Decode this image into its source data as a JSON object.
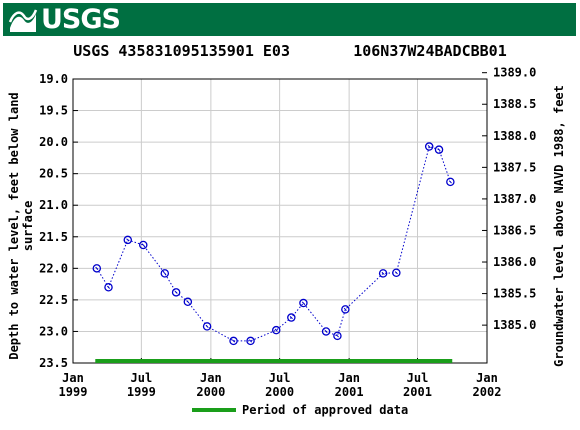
{
  "header": {
    "agency": "USGS"
  },
  "title": "USGS 435831095135901 E03       106N37W24BADCBB01",
  "colors": {
    "banner": "#006f41",
    "series": "#0000cc",
    "approved": "#1a9e1a"
  },
  "chart_data": {
    "type": "line",
    "title": "USGS 435831095135901 E03       106N37W24BADCBB01",
    "ylabel": "Depth to water level, feet below land surface",
    "ylabel_lines": [
      "Depth to water level, feet below land",
      "surface"
    ],
    "y2label": "Groundwater level above NAVD 1988, feet",
    "xlim": [
      "1999-01-01",
      "2002-01-01"
    ],
    "ylim": [
      23.5,
      19.0
    ],
    "y_inverted": true,
    "y2lim": [
      1384.4,
      1388.9
    ],
    "x_ticks": [
      {
        "date": "1999-01-01",
        "line1": "Jan",
        "line2": "1999"
      },
      {
        "date": "1999-07-01",
        "line1": "Jul",
        "line2": "1999"
      },
      {
        "date": "2000-01-01",
        "line1": "Jan",
        "line2": "2000"
      },
      {
        "date": "2000-07-01",
        "line1": "Jul",
        "line2": "2000"
      },
      {
        "date": "2001-01-01",
        "line1": "Jan",
        "line2": "2001"
      },
      {
        "date": "2001-07-01",
        "line1": "Jul",
        "line2": "2001"
      },
      {
        "date": "2002-01-01",
        "line1": "Jan",
        "line2": "2002"
      }
    ],
    "y_ticks": [
      "19.0",
      "19.5",
      "20.0",
      "20.5",
      "21.0",
      "21.5",
      "22.0",
      "22.5",
      "23.0",
      "23.5"
    ],
    "y_tick_values": [
      19.0,
      19.5,
      20.0,
      20.5,
      21.0,
      21.5,
      22.0,
      22.5,
      23.0,
      23.5
    ],
    "y2_ticks": [
      "1389.0",
      "1388.5",
      "1388.0",
      "1387.5",
      "1387.0",
      "1386.5",
      "1386.0",
      "1385.5",
      "1385.0"
    ],
    "y2_tick_values": [
      1389.0,
      1388.5,
      1388.0,
      1387.5,
      1387.0,
      1386.5,
      1386.0,
      1385.5,
      1385.0
    ],
    "grid": true,
    "series": [
      {
        "points": [
          {
            "x": "1999-03-05",
            "y": 22.0
          },
          {
            "x": "1999-04-05",
            "y": 22.3
          },
          {
            "x": "1999-05-26",
            "y": 21.55
          },
          {
            "x": "1999-07-06",
            "y": 21.63
          },
          {
            "x": "1999-09-01",
            "y": 22.08
          },
          {
            "x": "1999-10-01",
            "y": 22.38
          },
          {
            "x": "1999-11-01",
            "y": 22.53
          },
          {
            "x": "1999-12-22",
            "y": 22.92
          },
          {
            "x": "2000-03-01",
            "y": 23.15
          },
          {
            "x": "2000-04-15",
            "y": 23.15
          },
          {
            "x": "2000-06-22",
            "y": 22.98
          },
          {
            "x": "2000-08-01",
            "y": 22.78
          },
          {
            "x": "2000-09-02",
            "y": 22.55
          },
          {
            "x": "2000-11-01",
            "y": 23.0
          },
          {
            "x": "2000-12-01",
            "y": 23.07
          },
          {
            "x": "2000-12-22",
            "y": 22.65
          },
          {
            "x": "2001-04-01",
            "y": 22.08
          },
          {
            "x": "2001-05-06",
            "y": 22.07
          },
          {
            "x": "2001-08-01",
            "y": 20.07
          },
          {
            "x": "2001-08-27",
            "y": 20.12
          },
          {
            "x": "2001-09-26",
            "y": 20.63
          }
        ]
      }
    ],
    "approved_period": {
      "start": "1999-03-01",
      "end": "2001-10-01"
    },
    "legend": {
      "label": "Period of approved data",
      "placement": "bottom-center"
    }
  }
}
